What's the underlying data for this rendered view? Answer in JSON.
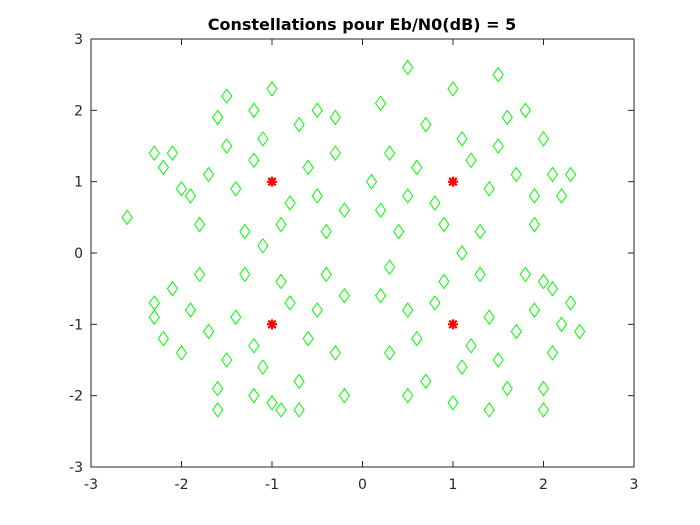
{
  "chart_data": {
    "type": "scatter",
    "title": "Constellations pour Eb/N0(dB) = 5",
    "xlabel": "",
    "ylabel": "",
    "xlim": [
      -3,
      3
    ],
    "ylim": [
      -3,
      3
    ],
    "xticks": [
      "-3",
      "-2",
      "-1",
      "0",
      "1",
      "2",
      "3"
    ],
    "yticks": [
      "-3",
      "-2",
      "-1",
      "0",
      "1",
      "2",
      "3"
    ],
    "grid": false,
    "legend": "none",
    "colors": {
      "received": "#00ff00",
      "ideal": "#ff0000",
      "axes": "#262626",
      "background": "#ffffff"
    },
    "series": [
      {
        "marker": "diamond",
        "color": "#00ff00",
        "points": [
          [
            -1.2,
            1.3
          ],
          [
            -0.8,
            0.7
          ],
          [
            -1.4,
            0.9
          ],
          [
            -0.6,
            1.2
          ],
          [
            -1.1,
            1.6
          ],
          [
            -0.9,
            0.4
          ],
          [
            -1.5,
            1.5
          ],
          [
            -0.5,
            0.8
          ],
          [
            -1.7,
            1.1
          ],
          [
            -0.3,
            1.4
          ],
          [
            -1.0,
            2.3
          ],
          [
            -1.3,
            0.3
          ],
          [
            -0.7,
            1.8
          ],
          [
            -1.9,
            0.8
          ],
          [
            -0.2,
            0.6
          ],
          [
            -1.6,
            1.9
          ],
          [
            -1.5,
            2.2
          ],
          [
            -2.1,
            1.4
          ],
          [
            -2.3,
            1.4
          ],
          [
            -2.6,
            0.5
          ],
          [
            -1.2,
            2.0
          ],
          [
            -0.5,
            2.0
          ],
          [
            -0.4,
            0.3
          ],
          [
            -1.8,
            0.4
          ],
          [
            -2.2,
            1.2
          ],
          [
            -2.0,
            0.9
          ],
          [
            -1.1,
            0.1
          ],
          [
            -0.3,
            1.9
          ],
          [
            1.2,
            1.3
          ],
          [
            0.8,
            0.7
          ],
          [
            1.4,
            0.9
          ],
          [
            0.6,
            1.2
          ],
          [
            1.1,
            1.6
          ],
          [
            0.9,
            0.4
          ],
          [
            1.5,
            1.5
          ],
          [
            0.5,
            0.8
          ],
          [
            1.7,
            1.1
          ],
          [
            0.3,
            1.4
          ],
          [
            1.0,
            2.3
          ],
          [
            1.3,
            0.3
          ],
          [
            0.7,
            1.8
          ],
          [
            1.9,
            0.8
          ],
          [
            0.2,
            0.6
          ],
          [
            1.6,
            1.9
          ],
          [
            0.5,
            2.6
          ],
          [
            1.5,
            2.5
          ],
          [
            0.2,
            2.1
          ],
          [
            2.0,
            1.6
          ],
          [
            2.1,
            1.1
          ],
          [
            2.3,
            1.1
          ],
          [
            1.9,
            0.4
          ],
          [
            0.4,
            0.3
          ],
          [
            1.8,
            2.0
          ],
          [
            2.2,
            0.8
          ],
          [
            0.1,
            1.0
          ],
          [
            1.1,
            0.0
          ],
          [
            -1.2,
            -1.3
          ],
          [
            -0.8,
            -0.7
          ],
          [
            -1.4,
            -0.9
          ],
          [
            -0.6,
            -1.2
          ],
          [
            -1.1,
            -1.6
          ],
          [
            -0.9,
            -0.4
          ],
          [
            -1.5,
            -1.5
          ],
          [
            -0.5,
            -0.8
          ],
          [
            -1.7,
            -1.1
          ],
          [
            -0.3,
            -1.4
          ],
          [
            -1.0,
            -2.1
          ],
          [
            -1.3,
            -0.3
          ],
          [
            -0.7,
            -1.8
          ],
          [
            -1.9,
            -0.8
          ],
          [
            -0.2,
            -0.6
          ],
          [
            -1.6,
            -1.9
          ],
          [
            -2.3,
            -0.9
          ],
          [
            -2.3,
            -0.7
          ],
          [
            -2.1,
            -0.5
          ],
          [
            -1.6,
            -2.2
          ],
          [
            -0.9,
            -2.2
          ],
          [
            -0.7,
            -2.2
          ],
          [
            -0.2,
            -2.0
          ],
          [
            -2.0,
            -1.4
          ],
          [
            -1.8,
            -0.3
          ],
          [
            -0.4,
            -0.3
          ],
          [
            -2.2,
            -1.2
          ],
          [
            -1.2,
            -2.0
          ],
          [
            1.2,
            -1.3
          ],
          [
            0.8,
            -0.7
          ],
          [
            1.4,
            -0.9
          ],
          [
            0.6,
            -1.2
          ],
          [
            1.1,
            -1.6
          ],
          [
            0.9,
            -0.4
          ],
          [
            1.5,
            -1.5
          ],
          [
            0.5,
            -0.8
          ],
          [
            1.7,
            -1.1
          ],
          [
            0.3,
            -1.4
          ],
          [
            1.0,
            -2.1
          ],
          [
            1.3,
            -0.3
          ],
          [
            0.7,
            -1.8
          ],
          [
            1.9,
            -0.8
          ],
          [
            0.2,
            -0.6
          ],
          [
            1.6,
            -1.9
          ],
          [
            2.0,
            -2.2
          ],
          [
            2.0,
            -1.9
          ],
          [
            2.3,
            -0.7
          ],
          [
            2.4,
            -1.1
          ],
          [
            2.1,
            -1.4
          ],
          [
            2.2,
            -1.0
          ],
          [
            2.0,
            -0.4
          ],
          [
            0.5,
            -2.0
          ],
          [
            0.3,
            -0.2
          ],
          [
            1.8,
            -0.3
          ],
          [
            1.4,
            -2.2
          ],
          [
            2.1,
            -0.5
          ]
        ]
      },
      {
        "marker": "star",
        "color": "#ff0000",
        "points": [
          [
            -1,
            1
          ],
          [
            1,
            1
          ],
          [
            -1,
            -1
          ],
          [
            1,
            -1
          ]
        ]
      }
    ]
  }
}
